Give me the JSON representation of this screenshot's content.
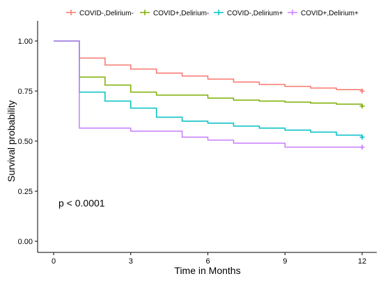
{
  "chart_data": {
    "type": "line",
    "subtype": "kaplan-meier step",
    "xlabel": "Time in Months",
    "ylabel": "Survival probability",
    "xlim": [
      0,
      12
    ],
    "ylim": [
      0,
      1
    ],
    "x_ticks": [
      0,
      3,
      6,
      9,
      12
    ],
    "y_ticks": [
      0.0,
      0.25,
      0.5,
      0.75,
      1.0
    ],
    "x_tick_labels": [
      "0",
      "3",
      "6",
      "9",
      "12"
    ],
    "y_tick_labels": [
      "0.00",
      "0.25",
      "0.50",
      "0.75",
      "1.00"
    ],
    "grid": false,
    "legend_position": "top",
    "annotation": "p < 0.0001",
    "series": [
      {
        "name": "COVID-,Delirium-",
        "color": "#F8766D",
        "x": [
          0,
          1,
          2,
          3,
          4,
          5,
          6,
          7,
          8,
          9,
          10,
          11,
          12
        ],
        "y": [
          1.0,
          0.915,
          0.88,
          0.86,
          0.84,
          0.825,
          0.81,
          0.795,
          0.783,
          0.773,
          0.765,
          0.758,
          0.75
        ]
      },
      {
        "name": "COVID+,Delirium-",
        "color": "#7CAE00",
        "x": [
          0,
          1,
          2,
          3,
          4,
          6,
          7,
          8,
          9,
          10,
          11,
          12
        ],
        "y": [
          1.0,
          0.82,
          0.78,
          0.745,
          0.73,
          0.715,
          0.705,
          0.7,
          0.695,
          0.69,
          0.685,
          0.675
        ]
      },
      {
        "name": "COVID-,Delirium+",
        "color": "#00BFC4",
        "x": [
          0,
          1,
          2,
          3,
          4,
          5,
          6,
          7,
          8,
          9,
          10,
          11,
          12
        ],
        "y": [
          1.0,
          0.745,
          0.7,
          0.665,
          0.62,
          0.6,
          0.59,
          0.575,
          0.565,
          0.555,
          0.545,
          0.53,
          0.52
        ]
      },
      {
        "name": "COVID+,Delirium+",
        "color": "#C77CFF",
        "x": [
          0,
          1,
          3,
          5,
          6,
          7,
          9,
          12
        ],
        "y": [
          1.0,
          0.565,
          0.55,
          0.52,
          0.505,
          0.49,
          0.47,
          0.47
        ]
      }
    ]
  }
}
